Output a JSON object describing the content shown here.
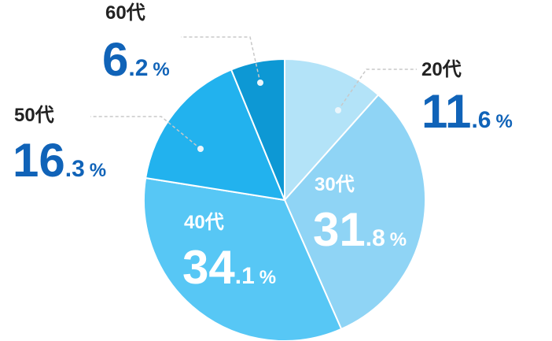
{
  "chart_data": {
    "type": "pie",
    "title": "",
    "unit": "%",
    "slices": [
      {
        "category": "20代",
        "value": 11.6,
        "int": "11",
        "dec": ".6",
        "pct": "%",
        "color": "#b3e3f8"
      },
      {
        "category": "30代",
        "value": 31.8,
        "int": "31",
        "dec": ".8",
        "pct": "%",
        "color": "#8fd4f5"
      },
      {
        "category": "40代",
        "value": 34.1,
        "int": "34",
        "dec": ".1",
        "pct": "%",
        "color": "#57c7f5"
      },
      {
        "category": "50代",
        "value": 16.3,
        "int": "16",
        "dec": ".3",
        "pct": "%",
        "color": "#22b2ee"
      },
      {
        "category": "60代",
        "value": 6.2,
        "int": "6",
        "dec": ".2",
        "pct": "%",
        "color": "#0d98d4"
      }
    ],
    "label_colors": {
      "outside_text": "#222222",
      "outside_number": "#1063b8",
      "inside_text": "#ffffff",
      "leader_line": "#c8c8c8"
    }
  }
}
